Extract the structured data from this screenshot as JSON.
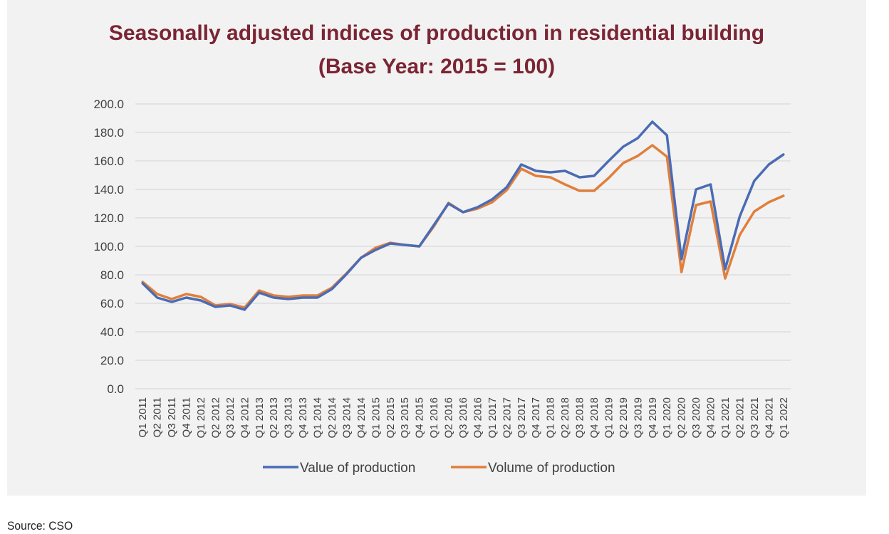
{
  "source_note": "Source: CSO",
  "colors": {
    "value": "#4a6cb5",
    "volume": "#e07f3c",
    "title": "#7b2433",
    "grid": "#d9d9d9",
    "panel": "#f2f2f2"
  },
  "chart_data": {
    "type": "line",
    "title": "Seasonally adjusted indices of production in residential building",
    "subtitle": "(Base Year: 2015 = 100)",
    "ylim": [
      0,
      200
    ],
    "yticks": [
      "0.0",
      "20.0",
      "40.0",
      "60.0",
      "80.0",
      "100.0",
      "120.0",
      "140.0",
      "160.0",
      "180.0",
      "200.0"
    ],
    "grid": true,
    "legend_position": "bottom",
    "categories": [
      "Q1 2011",
      "Q2 2011",
      "Q3 2011",
      "Q4 2011",
      "Q1 2012",
      "Q2 2012",
      "Q3 2012",
      "Q4 2012",
      "Q1 2013",
      "Q2 2013",
      "Q3 2013",
      "Q4 2013",
      "Q1 2014",
      "Q2 2014",
      "Q3 2014",
      "Q4 2014",
      "Q1 2015",
      "Q2 2015",
      "Q3 2015",
      "Q4 2015",
      "Q1 2016",
      "Q2 2016",
      "Q3 2016",
      "Q4 2016",
      "Q1 2017",
      "Q2 2017",
      "Q3 2017",
      "Q4 2017",
      "Q1 2018",
      "Q2 2018",
      "Q3 2018",
      "Q4 2018",
      "Q1 2019",
      "Q2 2019",
      "Q3 2019",
      "Q4 2019",
      "Q1 2020",
      "Q2 2020",
      "Q3 2020",
      "Q4 2020",
      "Q1 2021",
      "Q2 2021",
      "Q3 2021",
      "Q4 2021",
      "Q1 2022"
    ],
    "series": [
      {
        "name": "Value of production",
        "color": "#4a6cb5",
        "values": [
          74,
          64,
          61,
          64,
          62,
          57.5,
          58.5,
          55.5,
          67.5,
          64,
          63,
          64,
          64,
          70,
          80.5,
          92,
          97.5,
          102,
          101,
          100,
          115,
          130,
          124,
          127.5,
          133,
          141.5,
          157.5,
          153,
          152,
          153,
          148.5,
          149.5,
          160,
          170,
          176,
          187.5,
          178,
          91,
          140,
          143.5,
          84,
          121,
          146,
          157.5,
          164.5
        ]
      },
      {
        "name": "Volume of production",
        "color": "#e07f3c",
        "values": [
          75,
          66.5,
          63,
          66.5,
          64.5,
          58.5,
          59.5,
          57,
          69,
          65.5,
          64.5,
          65.5,
          65.5,
          71,
          81,
          92,
          99,
          102.5,
          101,
          100,
          114,
          130.5,
          124,
          126.5,
          131,
          139.5,
          154.5,
          149.5,
          148.5,
          143.5,
          139,
          139,
          148,
          158.5,
          163.5,
          171,
          163,
          82,
          129,
          131.5,
          77.5,
          108,
          124.5,
          131,
          135.5
        ]
      }
    ]
  }
}
